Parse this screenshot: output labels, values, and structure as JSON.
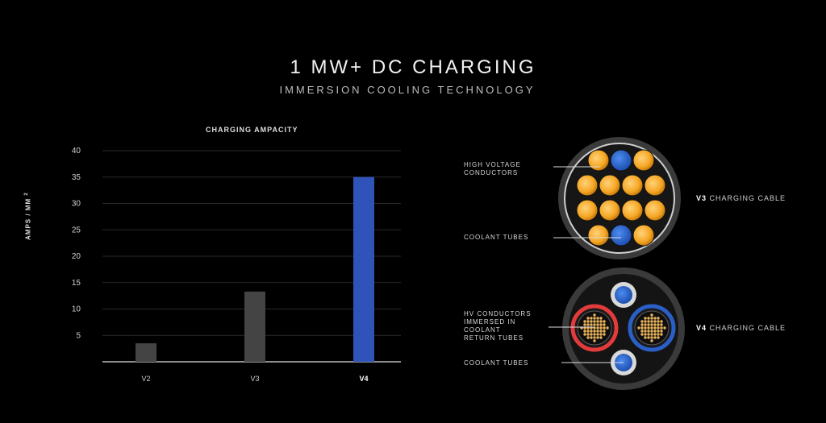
{
  "header": {
    "title": "1 MW+ DC CHARGING",
    "subtitle": "IMMERSION COOLING TECHNOLOGY"
  },
  "chart_data": {
    "type": "bar",
    "title": "CHARGING AMPACITY",
    "ylabel": "AMPS / MM",
    "ylabel_superscript": "2",
    "xlabel": "",
    "categories": [
      "V2",
      "V3",
      "V4"
    ],
    "values": [
      3.5,
      13.3,
      35
    ],
    "bar_colors": [
      "#444444",
      "#444444",
      "#2f53b8"
    ],
    "ylim": [
      0,
      40
    ],
    "yticks": [
      5,
      10,
      15,
      20,
      25,
      30,
      35,
      40
    ],
    "grid": true
  },
  "cables": {
    "v3": {
      "name_bold": "V3",
      "name_rest": "CHARGING CABLE",
      "label_conductors_line1": "HIGH VOLTAGE",
      "label_conductors_line2": "CONDUCTORS",
      "label_tubes": "COOLANT TUBES"
    },
    "v4": {
      "name_bold": "V4",
      "name_rest": "CHARGING CABLE",
      "label_hv_line1": "HV CONDUCTORS",
      "label_hv_line2": "IMMERSED IN",
      "label_hv_line3": "COOLANT",
      "label_hv_line4": "RETURN TUBES",
      "label_tubes": "COOLANT TUBES"
    }
  },
  "colors": {
    "conductor": "#f5a623",
    "coolant": "#2f6fd6",
    "v4_bar": "#2f53b8",
    "old_bar": "#444444",
    "return_red": "#e33b3b",
    "return_blue": "#2a5fc8"
  }
}
